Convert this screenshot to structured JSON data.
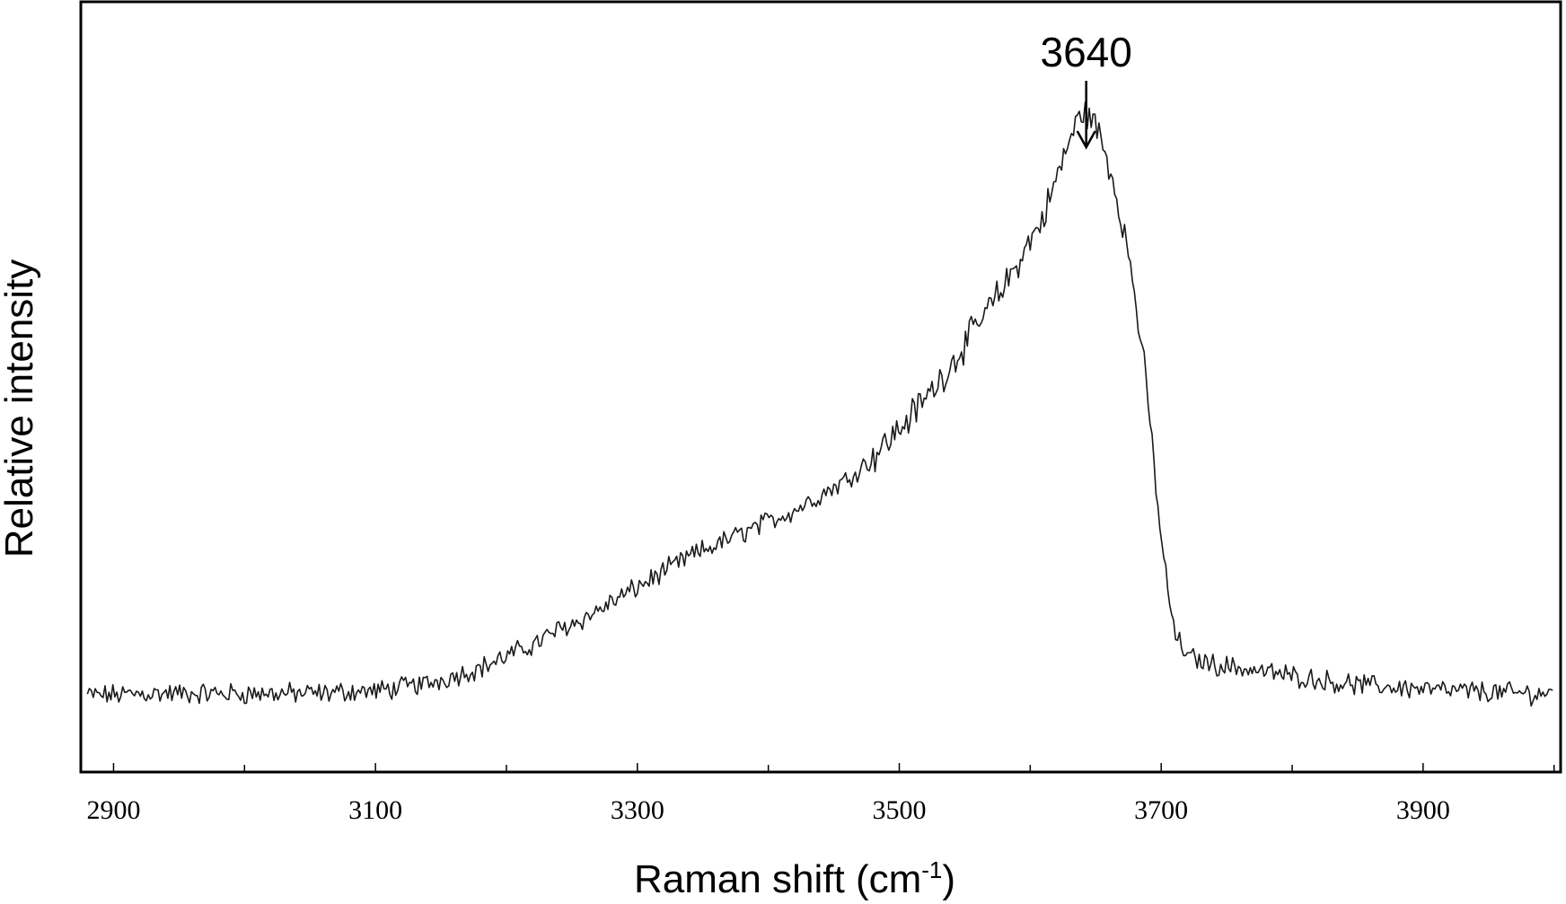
{
  "chart_data": {
    "type": "line",
    "xlabel": "Raman shift (cm",
    "xlabel_sup": "-1",
    "xlabel_suffix": ")",
    "ylabel": "Relative intensity",
    "xlim": [
      2875,
      4005
    ],
    "ylim": [
      0,
      100
    ],
    "x_ticks_major": [
      2900,
      3100,
      3300,
      3500,
      3700,
      3900
    ],
    "x_tick_labels": [
      "2900",
      "3100",
      "3300",
      "3500",
      "3700",
      "3900"
    ],
    "x_ticks_minor": [
      3000,
      3200,
      3400,
      3600,
      3800,
      4000
    ],
    "grid": false,
    "legend": "none",
    "annotation": {
      "text": "3640",
      "x": 3640,
      "arrow": true
    },
    "line_color": "#1a1a1a",
    "series": [
      {
        "x": [
          2880,
          2900,
          2920,
          2940,
          2960,
          2980,
          3000,
          3020,
          3040,
          3060,
          3080,
          3100,
          3120,
          3140,
          3160,
          3180,
          3200,
          3220,
          3240,
          3260,
          3280,
          3300,
          3320,
          3340,
          3360,
          3380,
          3400,
          3420,
          3440,
          3460,
          3480,
          3500,
          3520,
          3540,
          3560,
          3580,
          3600,
          3610,
          3620,
          3630,
          3640,
          3650,
          3660,
          3670,
          3680,
          3690,
          3700,
          3710,
          3720,
          3740,
          3760,
          3780,
          3800,
          3820,
          3840,
          3860,
          3880,
          3900,
          3920,
          3940,
          3960,
          3980,
          4000
        ],
        "y": [
          10.0,
          10.0,
          10.2,
          10.2,
          10.2,
          10.2,
          10.2,
          10.2,
          10.2,
          10.2,
          10.5,
          10.5,
          11.0,
          11.5,
          12.5,
          13.5,
          15.0,
          16.5,
          18.5,
          20.0,
          22.0,
          24.0,
          26.0,
          28.0,
          29.5,
          31.0,
          32.5,
          34.0,
          36.0,
          38.0,
          41.0,
          44.5,
          48.5,
          53.0,
          58.0,
          63.0,
          69.0,
          72.0,
          77.0,
          82.0,
          86.0,
          84.0,
          79.0,
          72.0,
          62.0,
          48.0,
          30.0,
          18.0,
          15.0,
          14.0,
          13.5,
          13.0,
          12.5,
          12.0,
          11.5,
          11.2,
          11.0,
          10.8,
          10.5,
          10.5,
          10.3,
          10.2,
          10.2
        ]
      }
    ]
  }
}
